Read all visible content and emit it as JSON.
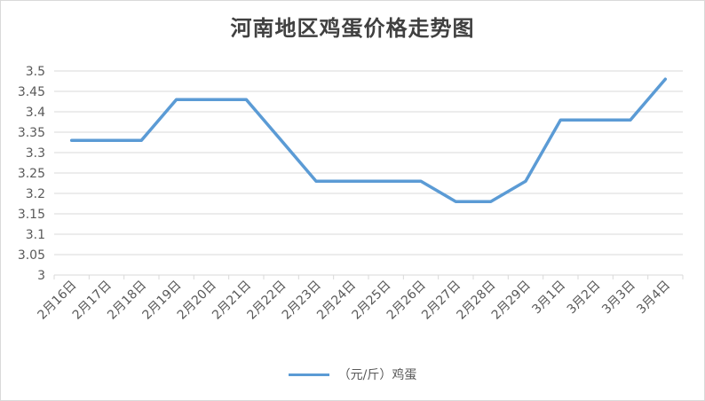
{
  "chart_data": {
    "type": "line",
    "title": "河南地区鸡蛋价格走势图",
    "xlabel": "",
    "ylabel": "",
    "categories": [
      "2月16日",
      "2月17日",
      "2月18日",
      "2月19日",
      "2月20日",
      "2月21日",
      "2月22日",
      "2月23日",
      "2月24日",
      "2月25日",
      "2月26日",
      "2月27日",
      "2月28日",
      "2月29日",
      "3月1日",
      "3月2日",
      "3月3日",
      "3月4日"
    ],
    "series": [
      {
        "name": "（元/斤）鸡蛋",
        "color": "#5b9bd5",
        "values": [
          3.33,
          3.33,
          3.33,
          3.43,
          3.43,
          3.43,
          3.33,
          3.23,
          3.23,
          3.23,
          3.23,
          3.18,
          3.18,
          3.23,
          3.38,
          3.38,
          3.38,
          3.48
        ]
      }
    ],
    "ylim": [
      3,
      3.5
    ],
    "yticks": [
      "3.5",
      "3.45",
      "3.4",
      "3.35",
      "3.3",
      "3.25",
      "3.2",
      "3.15",
      "3.1",
      "3.05",
      "3"
    ],
    "grid": true,
    "legend": "bottom"
  }
}
